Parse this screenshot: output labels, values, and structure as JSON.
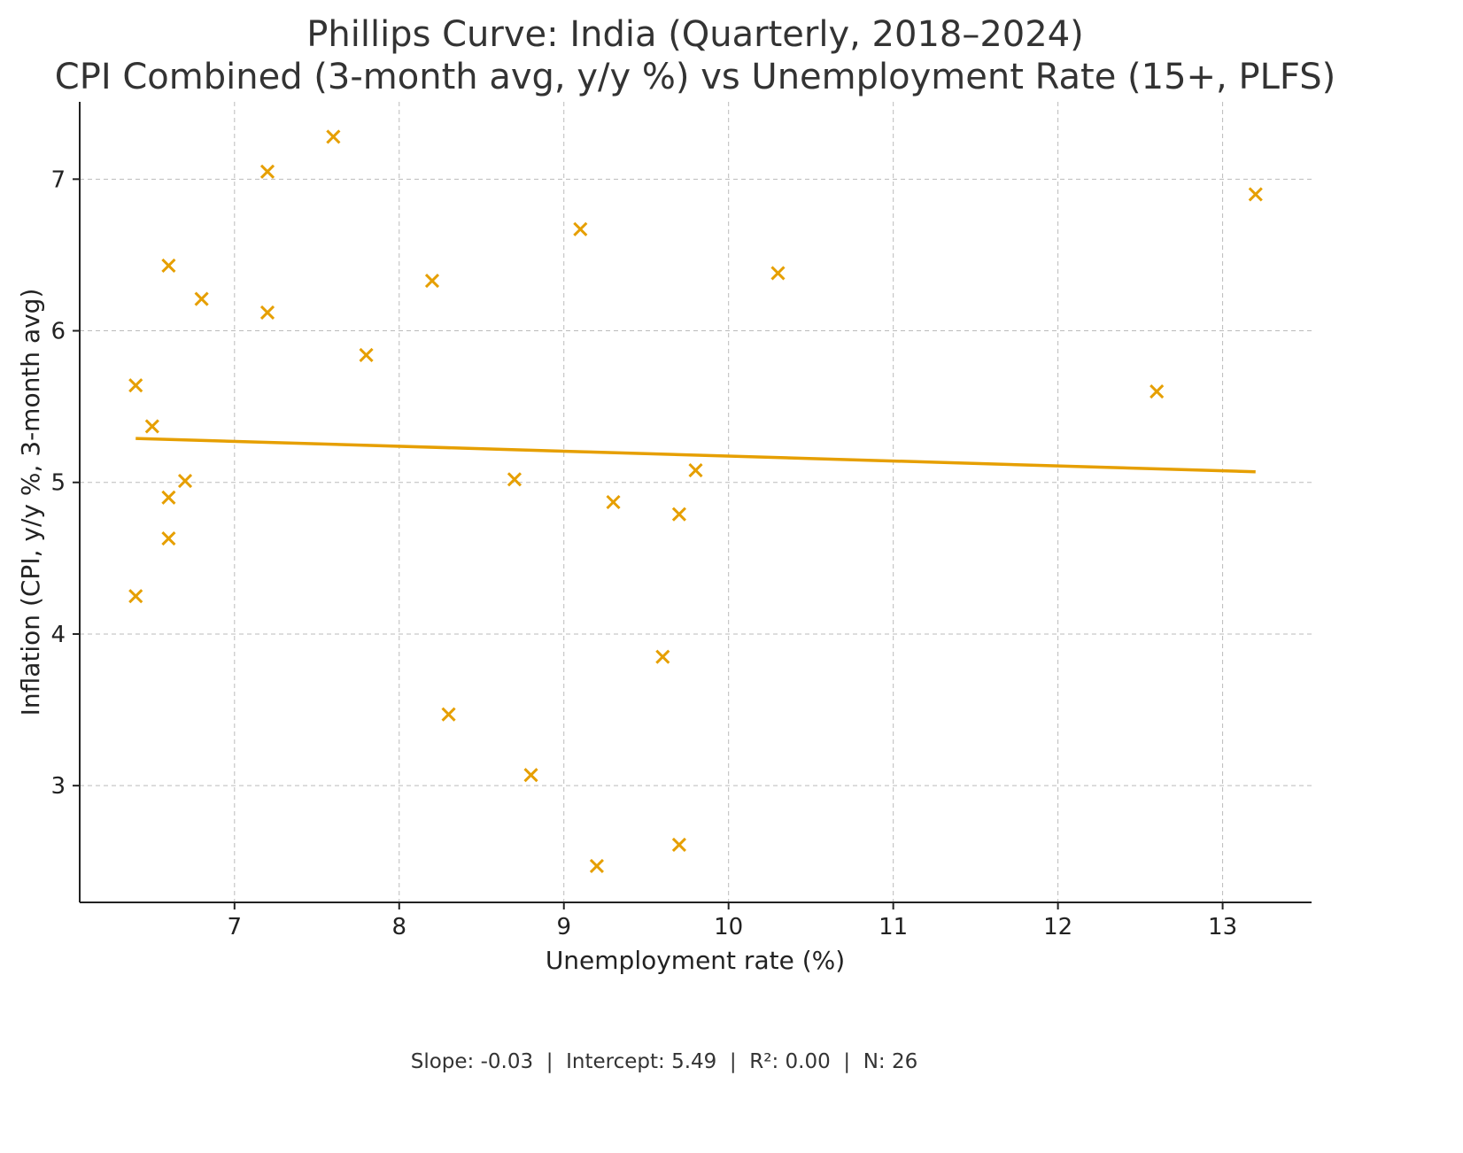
{
  "chart_data": {
    "type": "scatter",
    "title_line1": "Phillips Curve: India (Quarterly, 2018–2024)",
    "title_line2": "CPI Combined (3-month avg, y/y %) vs Unemployment Rate (15+, PLFS)",
    "xlabel": "Unemployment rate (%)",
    "ylabel": "Inflation (CPI, y/y %, 3-month avg)",
    "xlim": [
      6.06,
      13.54
    ],
    "ylim": [
      2.23,
      7.51
    ],
    "xticks": [
      7,
      8,
      9,
      10,
      11,
      12,
      13
    ],
    "yticks": [
      3,
      4,
      5,
      6,
      7
    ],
    "grid": true,
    "marker": "x",
    "color": "#E69F00",
    "points": [
      {
        "x": 7.6,
        "y": 7.28
      },
      {
        "x": 7.2,
        "y": 7.05
      },
      {
        "x": 13.2,
        "y": 6.9
      },
      {
        "x": 9.1,
        "y": 6.67
      },
      {
        "x": 6.6,
        "y": 6.43
      },
      {
        "x": 6.8,
        "y": 6.21
      },
      {
        "x": 8.2,
        "y": 6.33
      },
      {
        "x": 10.3,
        "y": 6.38
      },
      {
        "x": 7.2,
        "y": 6.12
      },
      {
        "x": 7.8,
        "y": 5.84
      },
      {
        "x": 6.4,
        "y": 5.64
      },
      {
        "x": 12.6,
        "y": 5.6
      },
      {
        "x": 6.5,
        "y": 5.37
      },
      {
        "x": 6.7,
        "y": 5.01
      },
      {
        "x": 8.7,
        "y": 5.02
      },
      {
        "x": 9.8,
        "y": 5.08
      },
      {
        "x": 6.6,
        "y": 4.9
      },
      {
        "x": 9.3,
        "y": 4.87
      },
      {
        "x": 9.7,
        "y": 4.79
      },
      {
        "x": 6.6,
        "y": 4.63
      },
      {
        "x": 6.4,
        "y": 4.25
      },
      {
        "x": 9.6,
        "y": 3.85
      },
      {
        "x": 8.3,
        "y": 3.47
      },
      {
        "x": 8.8,
        "y": 3.07
      },
      {
        "x": 9.7,
        "y": 2.61
      },
      {
        "x": 9.2,
        "y": 2.47
      }
    ],
    "fit_line": {
      "x_start": 6.4,
      "y_start": 5.29,
      "x_end": 13.2,
      "y_end": 5.07
    },
    "footer": "Slope: -0.03  |  Intercept: 5.49  |  R²: 0.00  |  N: 26"
  }
}
